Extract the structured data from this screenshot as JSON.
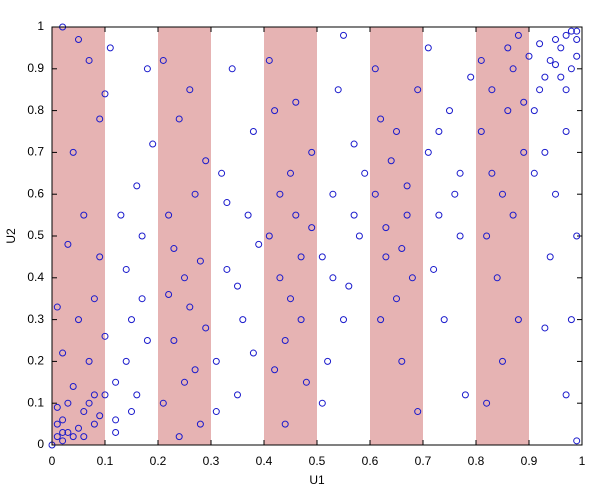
{
  "chart_data": {
    "type": "scatter",
    "xlabel": "U1",
    "ylabel": "U2",
    "xlim": [
      0,
      1
    ],
    "ylim": [
      0,
      1
    ],
    "xticks": [
      0,
      0.1,
      0.2,
      0.3,
      0.4,
      0.5,
      0.6,
      0.7,
      0.8,
      0.9,
      1
    ],
    "yticks": [
      0,
      0.1,
      0.2,
      0.3,
      0.4,
      0.5,
      0.6,
      0.7,
      0.8,
      0.9,
      1
    ],
    "bands": [
      [
        0,
        0.1
      ],
      [
        0.2,
        0.3
      ],
      [
        0.4,
        0.5
      ],
      [
        0.6,
        0.7
      ],
      [
        0.8,
        0.9
      ]
    ],
    "band_color": "#e6b3b3",
    "color": "#1a1acc",
    "x": [
      0.01,
      0.02,
      0.03,
      0.01,
      0.04,
      0.02,
      0.05,
      0.06,
      0.03,
      0.08,
      0.07,
      0.09,
      0.1,
      0.04,
      0.12,
      0.0,
      0.02,
      0.06,
      0.01,
      0.08,
      0.98,
      0.99,
      0.97,
      0.96,
      0.99,
      0.95,
      0.94,
      0.92,
      0.98,
      0.93,
      0.97,
      0.9,
      0.88,
      0.99,
      0.95,
      0.02,
      0.05,
      0.07,
      0.04,
      0.09,
      0.1,
      0.03,
      0.06,
      0.08,
      0.1,
      0.05,
      0.07,
      0.02,
      0.09,
      0.01,
      0.12,
      0.14,
      0.15,
      0.17,
      0.13,
      0.16,
      0.18,
      0.11,
      0.19,
      0.14,
      0.16,
      0.18,
      0.12,
      0.17,
      0.15,
      0.21,
      0.23,
      0.25,
      0.22,
      0.27,
      0.29,
      0.24,
      0.26,
      0.28,
      0.21,
      0.23,
      0.25,
      0.27,
      0.29,
      0.22,
      0.26,
      0.24,
      0.28,
      0.31,
      0.33,
      0.35,
      0.37,
      0.32,
      0.36,
      0.38,
      0.34,
      0.39,
      0.31,
      0.35,
      0.38,
      0.33,
      0.41,
      0.43,
      0.45,
      0.42,
      0.47,
      0.49,
      0.44,
      0.46,
      0.48,
      0.41,
      0.43,
      0.45,
      0.47,
      0.49,
      0.42,
      0.46,
      0.44,
      0.51,
      0.53,
      0.55,
      0.57,
      0.52,
      0.54,
      0.58,
      0.56,
      0.59,
      0.51,
      0.55,
      0.57,
      0.53,
      0.61,
      0.63,
      0.65,
      0.62,
      0.67,
      0.69,
      0.64,
      0.66,
      0.68,
      0.61,
      0.63,
      0.65,
      0.67,
      0.69,
      0.62,
      0.66,
      0.71,
      0.73,
      0.75,
      0.72,
      0.77,
      0.79,
      0.74,
      0.76,
      0.78,
      0.71,
      0.73,
      0.77,
      0.81,
      0.83,
      0.85,
      0.82,
      0.87,
      0.89,
      0.84,
      0.86,
      0.88,
      0.81,
      0.83,
      0.85,
      0.87,
      0.89,
      0.82,
      0.86,
      0.91,
      0.93,
      0.95,
      0.92,
      0.97,
      0.99,
      0.94,
      0.96,
      0.98,
      0.91,
      0.99,
      0.97,
      0.93
    ],
    "values": [
      0.02,
      0.01,
      0.03,
      0.05,
      0.02,
      0.06,
      0.04,
      0.08,
      0.1,
      0.05,
      0.1,
      0.07,
      0.12,
      0.14,
      0.03,
      0.0,
      0.03,
      0.02,
      0.09,
      0.12,
      0.99,
      0.97,
      0.98,
      0.95,
      0.93,
      0.97,
      0.92,
      0.96,
      0.9,
      0.88,
      0.85,
      0.93,
      0.98,
      0.99,
      0.91,
      1.0,
      0.97,
      0.92,
      0.7,
      0.78,
      0.84,
      0.48,
      0.55,
      0.35,
      0.26,
      0.3,
      0.2,
      0.22,
      0.45,
      0.33,
      0.15,
      0.2,
      0.08,
      0.35,
      0.55,
      0.62,
      0.9,
      0.95,
      0.72,
      0.42,
      0.12,
      0.25,
      0.06,
      0.5,
      0.3,
      0.1,
      0.25,
      0.4,
      0.55,
      0.18,
      0.68,
      0.78,
      0.33,
      0.05,
      0.92,
      0.47,
      0.15,
      0.6,
      0.28,
      0.36,
      0.85,
      0.02,
      0.44,
      0.2,
      0.42,
      0.12,
      0.55,
      0.65,
      0.3,
      0.75,
      0.9,
      0.48,
      0.08,
      0.38,
      0.22,
      0.58,
      0.5,
      0.6,
      0.35,
      0.8,
      0.45,
      0.7,
      0.25,
      0.55,
      0.15,
      0.92,
      0.4,
      0.65,
      0.3,
      0.52,
      0.18,
      0.82,
      0.05,
      0.45,
      0.6,
      0.3,
      0.72,
      0.2,
      0.85,
      0.5,
      0.38,
      0.65,
      0.1,
      0.98,
      0.55,
      0.4,
      0.6,
      0.45,
      0.75,
      0.3,
      0.55,
      0.85,
      0.68,
      0.2,
      0.4,
      0.9,
      0.52,
      0.35,
      0.62,
      0.08,
      0.78,
      0.47,
      0.7,
      0.55,
      0.8,
      0.42,
      0.65,
      0.88,
      0.3,
      0.6,
      0.12,
      0.95,
      0.75,
      0.5,
      0.75,
      0.85,
      0.6,
      0.5,
      0.9,
      0.7,
      0.4,
      0.8,
      0.3,
      0.92,
      0.65,
      0.2,
      0.55,
      0.82,
      0.1,
      0.95,
      0.8,
      0.7,
      0.6,
      0.85,
      0.75,
      0.5,
      0.45,
      0.88,
      0.3,
      0.65,
      0.01,
      0.12,
      0.28
    ]
  }
}
